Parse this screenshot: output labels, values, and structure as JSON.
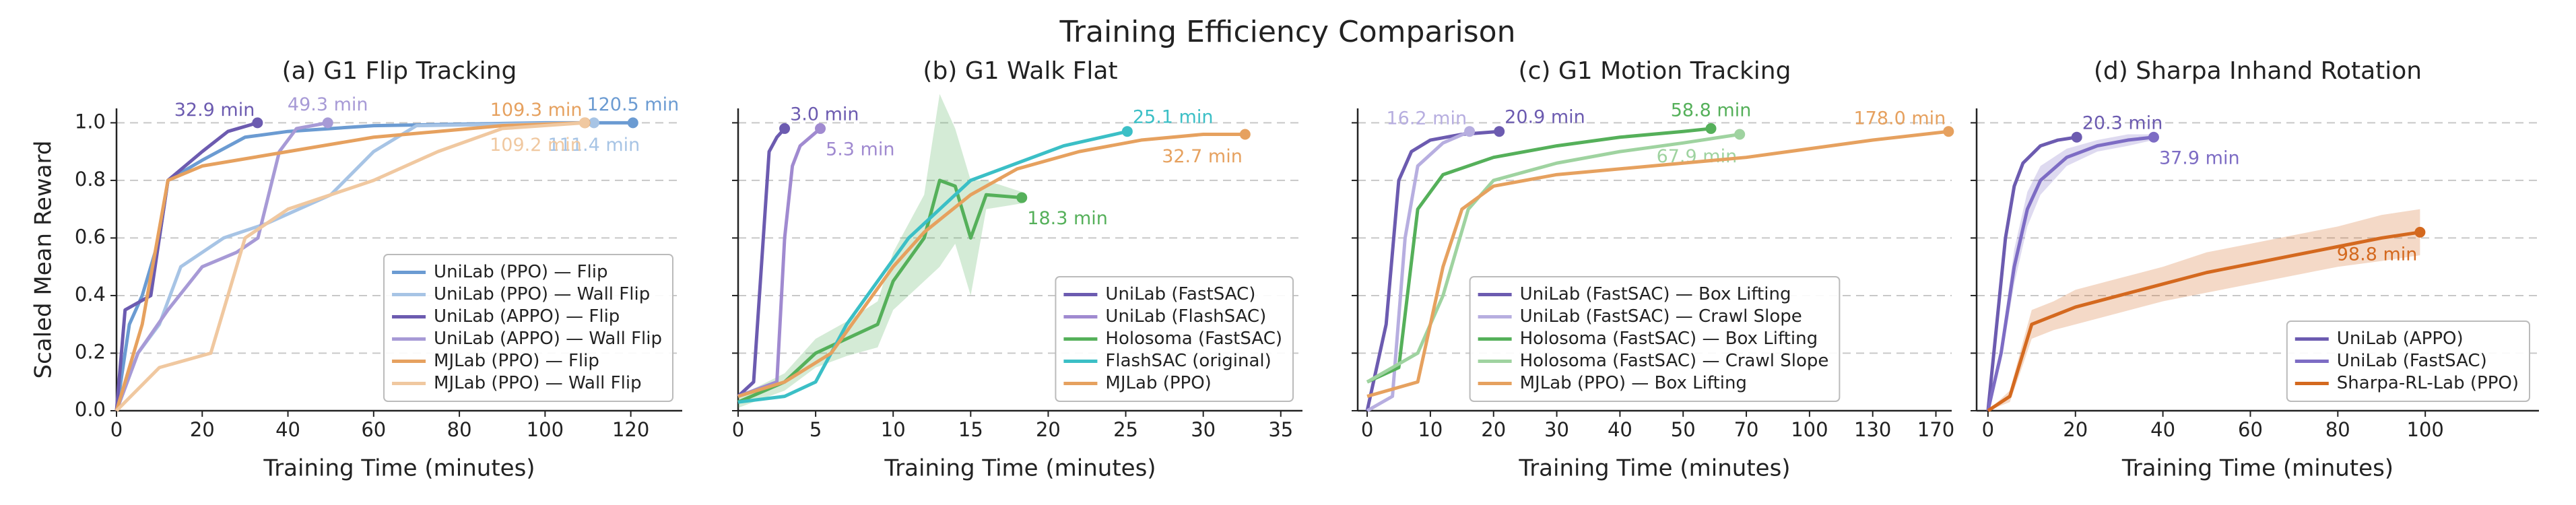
{
  "title": "Training Efficiency Comparison",
  "chart_data": [
    {
      "type": "line",
      "title": "(a) G1 Flip Tracking",
      "xlabel": "Training Time (minutes)",
      "ylabel": "Scaled Mean Reward",
      "xlim": [
        0,
        132
      ],
      "ylim": [
        0,
        1.05
      ],
      "xticks": [
        0,
        20,
        40,
        60,
        80,
        100,
        120
      ],
      "yticks": [
        {
          "value": 0,
          "label": "0.0"
        },
        {
          "value": 0.2,
          "label": "0.2"
        },
        {
          "value": 0.4,
          "label": "0.4"
        },
        {
          "value": 0.6,
          "label": "0.6"
        },
        {
          "value": 0.8,
          "label": "0.8"
        },
        {
          "value": 1,
          "label": "1.0"
        }
      ],
      "grid": true,
      "legend": "lower right",
      "xscale": "linear",
      "series": [
        {
          "name": "UniLab (PPO) — Flip",
          "color": "#6b9bd2",
          "x": [
            0,
            3,
            6,
            10,
            12,
            20,
            30,
            40,
            60,
            100,
            120.5
          ],
          "values": [
            0,
            0.3,
            0.4,
            0.6,
            0.8,
            0.87,
            0.95,
            0.97,
            0.99,
            1.0,
            1.0
          ],
          "end_label": "120.5 min",
          "label_side": "above"
        },
        {
          "name": "UniLab (PPO) — Wall Flip",
          "color": "#a7c4e5",
          "x": [
            0,
            5,
            10,
            15,
            25,
            35,
            50,
            60,
            70,
            111.4
          ],
          "values": [
            0,
            0.2,
            0.3,
            0.5,
            0.6,
            0.65,
            0.75,
            0.9,
            0.99,
            1.0
          ],
          "end_label": "111.4 min",
          "label_side": "below"
        },
        {
          "name": "UniLab (APPO) — Flip",
          "color": "#6c5bb0",
          "x": [
            0,
            2,
            8,
            12,
            20,
            26,
            32.9
          ],
          "values": [
            0,
            0.35,
            0.4,
            0.8,
            0.9,
            0.97,
            1.0
          ],
          "end_label": "32.9 min",
          "label_side": "above-left"
        },
        {
          "name": "UniLab (APPO) — Wall Flip",
          "color": "#a79ad6",
          "x": [
            0,
            5,
            12,
            20,
            28,
            33,
            38,
            42,
            49.3
          ],
          "values": [
            0,
            0.2,
            0.35,
            0.5,
            0.55,
            0.6,
            0.9,
            0.98,
            1.0
          ],
          "end_label": "49.3 min",
          "label_side": "above"
        },
        {
          "name": "MJLab (PPO) — Flip",
          "color": "#e6a15f",
          "x": [
            0,
            6,
            12,
            20,
            40,
            60,
            90,
            109.3
          ],
          "values": [
            0,
            0.3,
            0.8,
            0.85,
            0.9,
            0.95,
            0.99,
            1.0
          ],
          "end_label": "109.3 min",
          "label_side": "above-left"
        },
        {
          "name": "MJLab (PPO) — Wall Flip",
          "color": "#f0c8a0",
          "x": [
            0,
            10,
            22,
            30,
            40,
            50,
            60,
            75,
            90,
            109.2
          ],
          "values": [
            0,
            0.15,
            0.2,
            0.6,
            0.7,
            0.75,
            0.8,
            0.9,
            0.98,
            1.0
          ],
          "end_label": "109.2 min",
          "label_side": "below-left"
        }
      ]
    },
    {
      "type": "line",
      "title": "(b) G1 Walk Flat",
      "xlabel": "Training Time (minutes)",
      "xlim": [
        0,
        36.4
      ],
      "ylim": [
        0,
        1.05
      ],
      "xticks": [
        0,
        5,
        10,
        15,
        20,
        25,
        30,
        35
      ],
      "yticks": [
        0,
        0.2,
        0.4,
        0.6,
        0.8,
        1
      ],
      "grid": true,
      "legend": "lower right",
      "xscale": "linear",
      "series": [
        {
          "name": "UniLab (FastSAC)",
          "color": "#6c5bb0",
          "x": [
            0,
            1,
            1.5,
            2,
            2.5,
            3.0
          ],
          "values": [
            0.05,
            0.1,
            0.5,
            0.9,
            0.95,
            0.98
          ],
          "end_label": "3.0 min",
          "label_side": "above-right"
        },
        {
          "name": "UniLab (FlashSAC)",
          "color": "#a08ad0",
          "x": [
            0,
            2.5,
            3,
            3.5,
            4,
            5.3
          ],
          "values": [
            0.05,
            0.1,
            0.6,
            0.85,
            0.92,
            0.98
          ],
          "end_label": "5.3 min",
          "label_side": "below-right"
        },
        {
          "name": "Holosoma (FastSAC)",
          "color": "#55b05a",
          "x": [
            0,
            3,
            5,
            7,
            9,
            10,
            12,
            13,
            14,
            15,
            16,
            18.3
          ],
          "values": [
            0.03,
            0.1,
            0.2,
            0.25,
            0.3,
            0.45,
            0.6,
            0.8,
            0.78,
            0.6,
            0.75,
            0.74
          ],
          "band": [
            0.02,
            0.03,
            0.05,
            0.06,
            0.08,
            0.1,
            0.15,
            0.3,
            0.2,
            0.2,
            0.05,
            0.02
          ],
          "end_label": "18.3 min",
          "label_side": "below-right"
        },
        {
          "name": "FlashSAC (original)",
          "color": "#3bbfc6",
          "x": [
            0,
            3,
            5,
            7,
            9,
            11,
            13,
            15,
            18,
            21,
            25.1
          ],
          "values": [
            0.03,
            0.05,
            0.1,
            0.3,
            0.45,
            0.6,
            0.7,
            0.8,
            0.86,
            0.92,
            0.97
          ],
          "end_label": "25.1 min",
          "label_side": "above-right"
        },
        {
          "name": "MJLab (PPO)",
          "color": "#e6a15f",
          "x": [
            0,
            3,
            6,
            8,
            10,
            12,
            15,
            18,
            22,
            26,
            30,
            32.7
          ],
          "values": [
            0.05,
            0.1,
            0.2,
            0.35,
            0.5,
            0.62,
            0.75,
            0.84,
            0.9,
            0.94,
            0.96,
            0.96
          ],
          "end_label": "32.7 min",
          "label_side": "below-left"
        }
      ]
    },
    {
      "type": "line",
      "title": "(c) G1 Motion Tracking",
      "xlabel": "Training Time (minutes)",
      "xlim": [
        -1.5,
        180
      ],
      "ylim": [
        0,
        1.05
      ],
      "xticks": [
        0,
        10,
        20,
        30,
        40,
        50,
        70,
        100,
        130,
        170
      ],
      "yticks": [
        0,
        0.2,
        0.4,
        0.6,
        0.8,
        1
      ],
      "grid": true,
      "legend": "lower center",
      "xscale": "segmented",
      "series": [
        {
          "name": "UniLab (FastSAC) — Box Lifting",
          "color": "#6c5bb0",
          "x": [
            0,
            3,
            5,
            7,
            10,
            15,
            20.9
          ],
          "values": [
            0,
            0.3,
            0.8,
            0.9,
            0.94,
            0.96,
            0.97
          ],
          "end_label": "20.9 min",
          "label_side": "above-right"
        },
        {
          "name": "UniLab (FastSAC) — Crawl Slope",
          "color": "#b7aee0",
          "x": [
            0,
            4,
            6,
            8,
            12,
            16.2
          ],
          "values": [
            0,
            0.05,
            0.6,
            0.85,
            0.93,
            0.97
          ],
          "end_label": "16.2 min",
          "label_side": "above-left"
        },
        {
          "name": "Holosoma (FastSAC) — Box Lifting",
          "color": "#55b05a",
          "x": [
            0,
            5,
            8,
            12,
            20,
            30,
            40,
            50,
            58.8
          ],
          "values": [
            0.1,
            0.15,
            0.7,
            0.82,
            0.88,
            0.92,
            0.95,
            0.97,
            0.98
          ],
          "end_label": "58.8 min",
          "label_side": "above"
        },
        {
          "name": "Holosoma (FastSAC) — Crawl Slope",
          "color": "#9fd3a0",
          "x": [
            0,
            8,
            12,
            16,
            20,
            30,
            40,
            50,
            67.9
          ],
          "values": [
            0.1,
            0.2,
            0.4,
            0.7,
            0.8,
            0.86,
            0.9,
            0.93,
            0.96
          ],
          "end_label": "67.9 min",
          "label_side": "below-left"
        },
        {
          "name": "MJLab (PPO) — Box Lifting",
          "color": "#e6a15f",
          "x": [
            0,
            8,
            12,
            15,
            20,
            30,
            50,
            70,
            100,
            130,
            178.0
          ],
          "values": [
            0.05,
            0.1,
            0.5,
            0.7,
            0.78,
            0.82,
            0.86,
            0.88,
            0.91,
            0.94,
            0.97
          ],
          "end_label": "178.0 min",
          "label_side": "above-left"
        }
      ]
    },
    {
      "type": "line",
      "title": "(d) Sharpa Inhand Rotation",
      "xlabel": "Training Time (minutes)",
      "xlim": [
        -2.6,
        126
      ],
      "ylim": [
        0,
        1.05
      ],
      "xticks": [
        0,
        20,
        40,
        60,
        80,
        100
      ],
      "yticks": [
        0,
        0.2,
        0.4,
        0.6,
        0.8,
        1
      ],
      "grid": true,
      "legend": "lower right",
      "xscale": "linear",
      "series": [
        {
          "name": "UniLab (APPO)",
          "color": "#6c5bb0",
          "x": [
            0,
            2,
            4,
            6,
            8,
            12,
            16,
            20.3
          ],
          "values": [
            0,
            0.3,
            0.6,
            0.78,
            0.86,
            0.92,
            0.94,
            0.95
          ],
          "end_label": "20.3 min",
          "label_side": "above-right"
        },
        {
          "name": "UniLab (FastSAC)",
          "color": "#7d6cc4",
          "x": [
            0,
            3,
            6,
            9,
            12,
            18,
            25,
            32,
            37.9
          ],
          "values": [
            0,
            0.2,
            0.5,
            0.7,
            0.8,
            0.88,
            0.92,
            0.94,
            0.95
          ],
          "band": [
            0,
            0.03,
            0.06,
            0.06,
            0.05,
            0.03,
            0.02,
            0.02,
            0.01
          ],
          "end_label": "37.9 min",
          "label_side": "below-right"
        },
        {
          "name": "Sharpa-RL-Lab (PPO)",
          "color": "#d4691f",
          "x": [
            0,
            5,
            8,
            10,
            15,
            20,
            30,
            40,
            50,
            60,
            70,
            80,
            90,
            98.8
          ],
          "values": [
            0,
            0.05,
            0.2,
            0.3,
            0.33,
            0.36,
            0.4,
            0.44,
            0.48,
            0.51,
            0.54,
            0.57,
            0.6,
            0.62
          ],
          "band": [
            0,
            0.02,
            0.04,
            0.05,
            0.05,
            0.06,
            0.06,
            0.06,
            0.07,
            0.07,
            0.07,
            0.07,
            0.08,
            0.08
          ],
          "end_label": "98.8 min",
          "label_side": "below-left"
        }
      ]
    }
  ]
}
